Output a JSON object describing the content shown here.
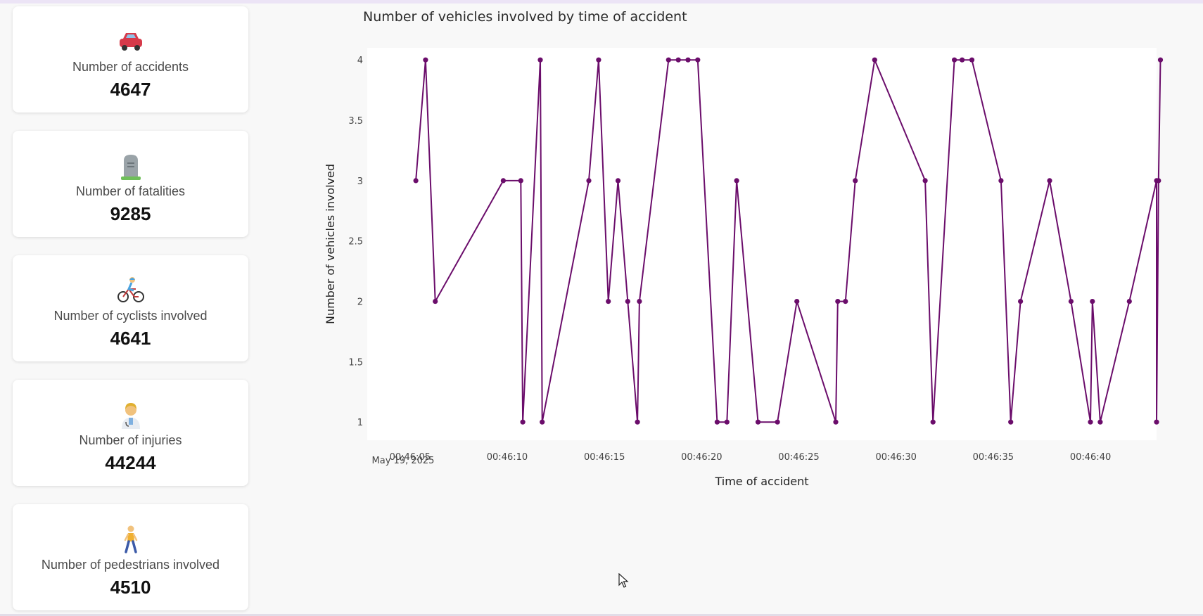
{
  "cards": [
    {
      "icon": "car-icon",
      "label": "Number of accidents",
      "value": "4647"
    },
    {
      "icon": "headstone-icon",
      "label": "Number of fatalities",
      "value": "9285"
    },
    {
      "icon": "cyclist-icon",
      "label": "Number of cyclists involved",
      "value": "4641"
    },
    {
      "icon": "health-worker-icon",
      "label": "Number of injuries",
      "value": "44244"
    },
    {
      "icon": "pedestrian-icon",
      "label": "Number of pedestrians involved",
      "value": "4510"
    }
  ],
  "chart_data": {
    "type": "line",
    "title": "Number of vehicles involved by time of accident",
    "xlabel": "Time of accident",
    "ylabel": "Number of vehicles involved",
    "x_tick_labels": [
      "00:46:05",
      "00:46:10",
      "00:46:15",
      "00:46:20",
      "00:46:25",
      "00:46:30",
      "00:46:35",
      "00:46:40"
    ],
    "x_date_label": "May 19, 2025",
    "y_tick_labels": [
      "1",
      "1.5",
      "2",
      "2.5",
      "3",
      "3.5",
      "4"
    ],
    "xlim": [
      "00:46:02.8",
      "00:46:43.4"
    ],
    "ylim": [
      0.85,
      4.1
    ],
    "grid": false,
    "color": "#6b0d6b",
    "series": [
      {
        "x": [
          "00:46:05.3",
          "00:46:05.8",
          "00:46:06.3",
          "00:46:09.8",
          "00:46:10.7",
          "00:46:10.8",
          "00:46:11.7",
          "00:46:11.8",
          "00:46:14.2",
          "00:46:14.7",
          "00:46:15.2",
          "00:46:15.7",
          "00:46:16.2",
          "00:46:16.7",
          "00:46:16.8",
          "00:46:18.3",
          "00:46:18.8",
          "00:46:19.3",
          "00:46:19.8",
          "00:46:20.8",
          "00:46:21.3",
          "00:46:21.8",
          "00:46:22.9",
          "00:46:23.9",
          "00:46:24.9",
          "00:46:26.9",
          "00:46:27.0",
          "00:46:27.4",
          "00:46:27.9",
          "00:46:28.9",
          "00:46:31.5",
          "00:46:31.9",
          "00:46:33.0",
          "00:46:33.4",
          "00:46:33.9",
          "00:46:35.4",
          "00:46:35.9",
          "00:46:36.4",
          "00:46:37.9",
          "00:46:39.0",
          "00:46:40.0",
          "00:46:40.1",
          "00:46:40.5",
          "00:46:42.0",
          "00:46:43.4",
          "00:46:43.4",
          "00:46:43.5",
          "00:46:43.6"
        ],
        "y": [
          3,
          4,
          2,
          3,
          3,
          1,
          4,
          1,
          3,
          4,
          2,
          3,
          2,
          1,
          2,
          4,
          4,
          4,
          4,
          1,
          1,
          3,
          1,
          1,
          2,
          1,
          2,
          2,
          3,
          4,
          3,
          1,
          4,
          4,
          4,
          3,
          1,
          2,
          3,
          2,
          1,
          2,
          1,
          2,
          3,
          1,
          3,
          4
        ]
      }
    ]
  }
}
